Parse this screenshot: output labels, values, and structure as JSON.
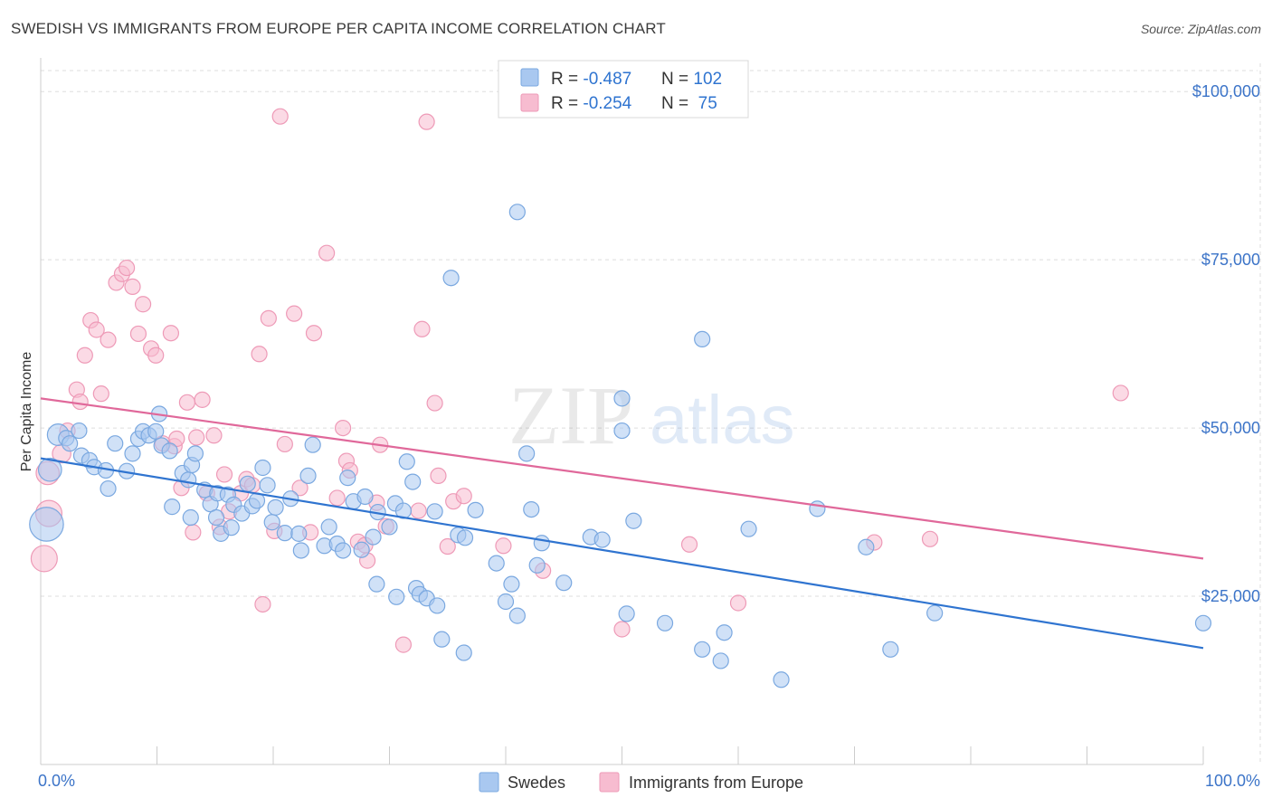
{
  "title": "SWEDISH VS IMMIGRANTS FROM EUROPE PER CAPITA INCOME CORRELATION CHART",
  "source": "Source: ZipAtlas.com",
  "watermark": {
    "zip": "ZIP",
    "atlas": "atlas"
  },
  "colors": {
    "blue_fill": "#a9c8f0",
    "blue_stroke": "#7aa8e0",
    "blue_line": "#2f74d0",
    "pink_fill": "#f7bcd0",
    "pink_stroke": "#ee9ab7",
    "pink_line": "#e0689a",
    "axis_label": "#3c74c8",
    "grid": "#dddddd"
  },
  "stats_box": {
    "rows": [
      {
        "r_label": "R = ",
        "r_value": "-0.487",
        "n_label": "N = ",
        "n_value": "102"
      },
      {
        "r_label": "R = ",
        "r_value": "-0.254",
        "n_label": "N = ",
        "n_value": " 75"
      }
    ]
  },
  "chart_data": {
    "type": "scatter",
    "title": "SWEDISH VS IMMIGRANTS FROM EUROPE PER CAPITA INCOME CORRELATION CHART",
    "xlabel": "",
    "ylabel": "Per Capita Income",
    "xlim": [
      0,
      100
    ],
    "ylim": [
      0,
      105000
    ],
    "x_tick_labels": [
      "0.0%",
      "100.0%"
    ],
    "y_ticks": [
      25000,
      50000,
      75000,
      100000
    ],
    "y_tick_labels": [
      "$25,000",
      "$50,000",
      "$75,000",
      "$100,000"
    ],
    "grid": true,
    "legend_position": "bottom-center",
    "series": [
      {
        "name": "Swedes",
        "color": "#a9c8f0",
        "trend": {
          "x": [
            0,
            100
          ],
          "y": [
            45500,
            17300
          ]
        },
        "points": [
          [
            0.5,
            35700,
            2.2
          ],
          [
            0.8,
            43800,
            1.5
          ],
          [
            1.5,
            49000,
            1.4
          ],
          [
            2.2,
            48500,
            1
          ],
          [
            2.5,
            47700,
            1
          ],
          [
            3.3,
            49600,
            1
          ],
          [
            3.5,
            45900,
            1
          ],
          [
            4.2,
            45200,
            1
          ],
          [
            4.6,
            44200,
            1
          ],
          [
            5.6,
            43700,
            1
          ],
          [
            5.8,
            41000,
            1
          ],
          [
            6.4,
            47700,
            1
          ],
          [
            7.4,
            43600,
            1
          ],
          [
            7.9,
            46200,
            1
          ],
          [
            8.4,
            48400,
            1
          ],
          [
            8.8,
            49500,
            1
          ],
          [
            9.3,
            48900,
            1
          ],
          [
            9.9,
            49500,
            1
          ],
          [
            10.2,
            52100,
            1
          ],
          [
            10.4,
            47400,
            1
          ],
          [
            11.1,
            46600,
            1
          ],
          [
            11.3,
            38300,
            1
          ],
          [
            12.2,
            43300,
            1
          ],
          [
            12.7,
            42300,
            1
          ],
          [
            12.9,
            36700,
            1
          ],
          [
            13.0,
            44500,
            1
          ],
          [
            13.3,
            46200,
            1
          ],
          [
            14.1,
            40800,
            1
          ],
          [
            14.6,
            38700,
            1
          ],
          [
            15.1,
            36700,
            1
          ],
          [
            15.2,
            40300,
            1
          ],
          [
            15.5,
            34300,
            1
          ],
          [
            16.1,
            40100,
            1
          ],
          [
            16.4,
            35200,
            1
          ],
          [
            16.6,
            38600,
            1
          ],
          [
            17.3,
            37300,
            1
          ],
          [
            17.8,
            41700,
            1
          ],
          [
            18.2,
            38400,
            1
          ],
          [
            18.6,
            39200,
            1
          ],
          [
            19.1,
            44100,
            1
          ],
          [
            19.5,
            41500,
            1
          ],
          [
            19.9,
            36000,
            1
          ],
          [
            20.2,
            38200,
            1
          ],
          [
            21.0,
            34400,
            1
          ],
          [
            21.5,
            39500,
            1
          ],
          [
            22.2,
            34300,
            1
          ],
          [
            22.4,
            31800,
            1
          ],
          [
            23.0,
            42900,
            1
          ],
          [
            23.4,
            47500,
            1
          ],
          [
            24.4,
            32500,
            1
          ],
          [
            24.8,
            35300,
            1
          ],
          [
            25.5,
            32800,
            1
          ],
          [
            26.0,
            31800,
            1
          ],
          [
            26.4,
            42600,
            1
          ],
          [
            26.9,
            39100,
            1
          ],
          [
            27.6,
            31900,
            1
          ],
          [
            27.9,
            39800,
            1
          ],
          [
            28.6,
            33800,
            1
          ],
          [
            28.9,
            26800,
            1
          ],
          [
            29.0,
            37500,
            1
          ],
          [
            30.0,
            35300,
            1
          ],
          [
            30.5,
            38800,
            1
          ],
          [
            30.6,
            24900,
            1
          ],
          [
            31.2,
            37700,
            1
          ],
          [
            31.5,
            45000,
            1
          ],
          [
            32.0,
            42000,
            1
          ],
          [
            32.3,
            26200,
            1
          ],
          [
            32.6,
            25300,
            1
          ],
          [
            33.2,
            24700,
            1
          ],
          [
            33.9,
            37600,
            1
          ],
          [
            34.1,
            23600,
            1
          ],
          [
            34.5,
            18600,
            1
          ],
          [
            35.3,
            72300,
            1
          ],
          [
            35.9,
            34100,
            1
          ],
          [
            36.4,
            16600,
            1
          ],
          [
            36.5,
            33700,
            1
          ],
          [
            37.4,
            37800,
            1
          ],
          [
            39.2,
            29900,
            1
          ],
          [
            40.0,
            24200,
            1
          ],
          [
            40.5,
            26800,
            1
          ],
          [
            41.0,
            22100,
            1
          ],
          [
            41.0,
            82100,
            1
          ],
          [
            41.8,
            46200,
            1
          ],
          [
            42.2,
            37900,
            1
          ],
          [
            42.7,
            29600,
            1
          ],
          [
            43.1,
            32900,
            1
          ],
          [
            45.0,
            27000,
            1
          ],
          [
            47.3,
            33800,
            1
          ],
          [
            48.3,
            33400,
            1
          ],
          [
            50.0,
            54400,
            1
          ],
          [
            50.0,
            49600,
            1
          ],
          [
            50.4,
            22400,
            1
          ],
          [
            51.0,
            36200,
            1
          ],
          [
            53.7,
            21000,
            1
          ],
          [
            56.9,
            17100,
            1
          ],
          [
            56.9,
            63200,
            1
          ],
          [
            58.5,
            15400,
            1
          ],
          [
            58.8,
            19600,
            1
          ],
          [
            60.9,
            35000,
            1
          ],
          [
            63.7,
            12600,
            1
          ],
          [
            66.8,
            38000,
            1
          ],
          [
            71.0,
            32300,
            1
          ],
          [
            73.1,
            17100,
            1
          ],
          [
            76.9,
            22500,
            1
          ],
          [
            100.0,
            21000,
            1
          ]
        ]
      },
      {
        "name": "Immigrants from Europe",
        "color": "#f7bcd0",
        "trend": {
          "x": [
            0,
            100
          ],
          "y": [
            54400,
            30600
          ]
        },
        "points": [
          [
            0.3,
            30600,
            1.7
          ],
          [
            0.6,
            43300,
            1.5
          ],
          [
            0.7,
            37300,
            1.7
          ],
          [
            1.8,
            46200,
            1.2
          ],
          [
            2.3,
            49600,
            1
          ],
          [
            3.1,
            55700,
            1
          ],
          [
            3.4,
            53900,
            1
          ],
          [
            3.8,
            60800,
            1
          ],
          [
            4.3,
            66000,
            1
          ],
          [
            4.8,
            64600,
            1
          ],
          [
            5.2,
            55100,
            1
          ],
          [
            5.8,
            63100,
            1
          ],
          [
            6.5,
            71600,
            1
          ],
          [
            7.0,
            72900,
            1
          ],
          [
            7.4,
            73800,
            1
          ],
          [
            7.9,
            71000,
            1
          ],
          [
            8.4,
            64000,
            1
          ],
          [
            8.8,
            68400,
            1
          ],
          [
            9.5,
            61800,
            1
          ],
          [
            9.9,
            60800,
            1
          ],
          [
            10.5,
            47700,
            1
          ],
          [
            11.2,
            64100,
            1
          ],
          [
            11.5,
            47300,
            1
          ],
          [
            11.7,
            48400,
            1
          ],
          [
            12.1,
            41100,
            1
          ],
          [
            12.6,
            53800,
            1
          ],
          [
            13.1,
            34500,
            1
          ],
          [
            13.4,
            48600,
            1
          ],
          [
            13.9,
            54200,
            1
          ],
          [
            14.3,
            40300,
            1
          ],
          [
            14.9,
            48900,
            1
          ],
          [
            15.4,
            35300,
            1
          ],
          [
            15.8,
            43100,
            1
          ],
          [
            16.2,
            37600,
            1
          ],
          [
            17.2,
            40300,
            1
          ],
          [
            17.7,
            42400,
            1
          ],
          [
            18.2,
            41500,
            1
          ],
          [
            18.8,
            61000,
            1
          ],
          [
            19.1,
            23800,
            1
          ],
          [
            19.6,
            66300,
            1
          ],
          [
            20.1,
            34700,
            1
          ],
          [
            20.6,
            96300,
            1
          ],
          [
            21.0,
            47600,
            1
          ],
          [
            21.8,
            67000,
            1
          ],
          [
            22.3,
            41100,
            1
          ],
          [
            23.2,
            34500,
            1
          ],
          [
            23.5,
            64100,
            1
          ],
          [
            24.6,
            76000,
            1
          ],
          [
            25.5,
            39600,
            1
          ],
          [
            26.0,
            50000,
            1
          ],
          [
            26.3,
            45100,
            1
          ],
          [
            26.6,
            43700,
            1
          ],
          [
            27.3,
            33100,
            1
          ],
          [
            27.9,
            32600,
            1
          ],
          [
            28.1,
            30300,
            1
          ],
          [
            28.9,
            38900,
            1
          ],
          [
            29.2,
            47500,
            1
          ],
          [
            29.7,
            35400,
            1
          ],
          [
            31.2,
            17800,
            1
          ],
          [
            32.5,
            37700,
            1
          ],
          [
            32.8,
            64700,
            1
          ],
          [
            33.2,
            95500,
            1
          ],
          [
            33.9,
            53700,
            1
          ],
          [
            34.2,
            42900,
            1
          ],
          [
            35.0,
            32400,
            1
          ],
          [
            35.5,
            39100,
            1
          ],
          [
            36.4,
            39900,
            1
          ],
          [
            39.8,
            32500,
            1
          ],
          [
            43.2,
            28800,
            1
          ],
          [
            50.0,
            20100,
            1
          ],
          [
            55.8,
            32700,
            1
          ],
          [
            60.0,
            24000,
            1
          ],
          [
            71.7,
            33000,
            1
          ],
          [
            76.5,
            33500,
            1
          ],
          [
            92.9,
            55200,
            1
          ]
        ]
      }
    ]
  },
  "legend": {
    "items": [
      "Swedes",
      "Immigrants from Europe"
    ]
  }
}
